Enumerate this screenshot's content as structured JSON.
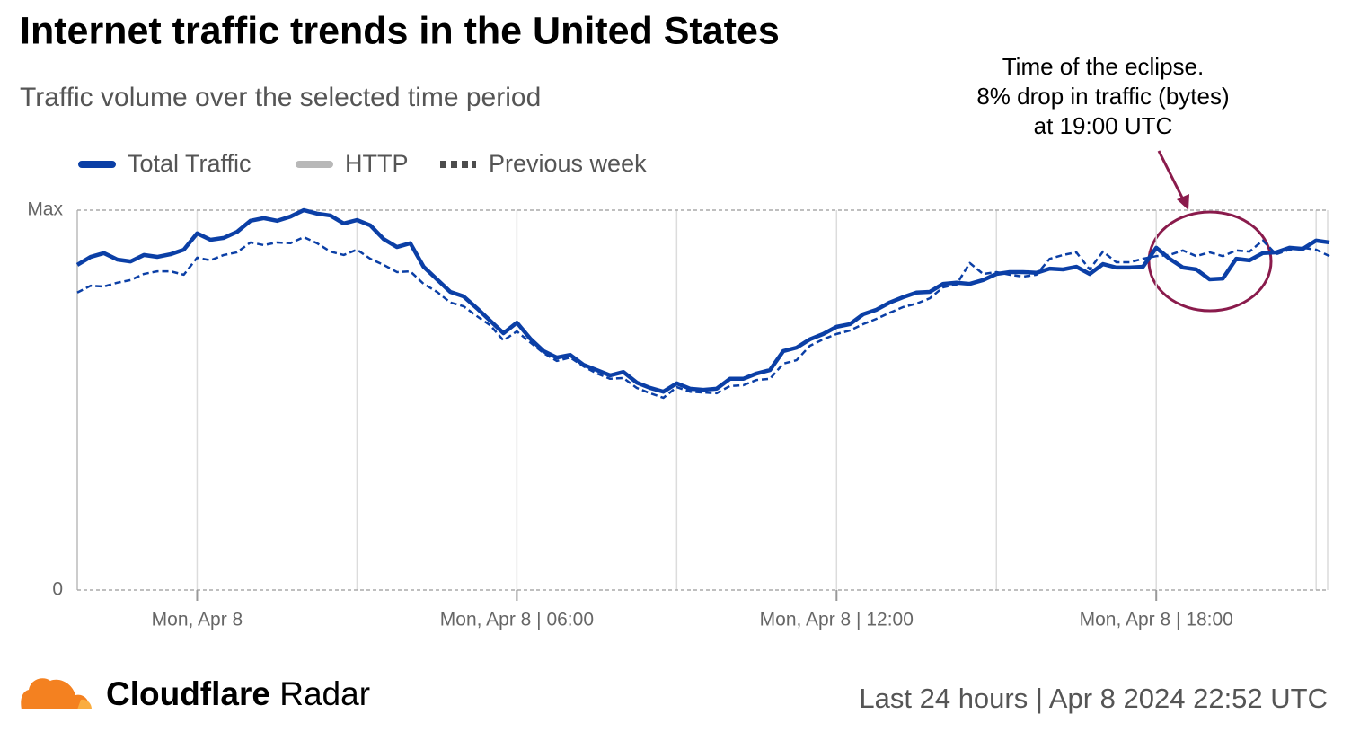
{
  "chart_data": {
    "type": "line",
    "title": "Internet traffic trends in the United States",
    "subtitle": "Traffic volume over the selected time period",
    "annotation": [
      "Time of the eclipse.",
      "8% drop in traffic (bytes)",
      "at 19:00 UTC"
    ],
    "xlim": [
      -2.25,
      21.25
    ],
    "xticks": [
      {
        "value": 0,
        "label": "Mon, Apr 8"
      },
      {
        "value": 6,
        "label": "Mon, Apr 8 | 06:00"
      },
      {
        "value": 12,
        "label": "Mon, Apr 8 | 12:00"
      },
      {
        "value": 18,
        "label": "Mon, Apr 8 | 18:00"
      }
    ],
    "xgrid": [
      0,
      3,
      6,
      9,
      12,
      15,
      18,
      21
    ],
    "ylim": [
      0,
      100
    ],
    "yticks": [
      0,
      {
        "value": 100,
        "label": "Max"
      }
    ],
    "x": [
      -2.25,
      -2,
      -1.75,
      -1.5,
      -1.25,
      -1,
      -0.75,
      -0.5,
      -0.25,
      0,
      0.25,
      0.5,
      0.75,
      1,
      1.25,
      1.5,
      1.75,
      2,
      2.25,
      2.5,
      2.75,
      3,
      3.25,
      3.5,
      3.75,
      4,
      4.25,
      4.5,
      4.75,
      5,
      5.25,
      5.5,
      5.75,
      6,
      6.25,
      6.5,
      6.75,
      7,
      7.25,
      7.5,
      7.75,
      8,
      8.25,
      8.5,
      8.75,
      9,
      9.25,
      9.5,
      9.75,
      10,
      10.25,
      10.5,
      10.75,
      11,
      11.25,
      11.5,
      11.75,
      12,
      12.25,
      12.5,
      12.75,
      13,
      13.25,
      13.5,
      13.75,
      14,
      14.25,
      14.5,
      14.75,
      15,
      15.25,
      15.5,
      15.75,
      16,
      16.25,
      16.5,
      16.75,
      17,
      17.25,
      17.5,
      17.75,
      18,
      18.25,
      18.5,
      18.75,
      19,
      19.25,
      19.5,
      19.75,
      20,
      20.25,
      20.5,
      20.75,
      21,
      21.25
    ],
    "series": [
      {
        "name": "Total Traffic",
        "color": "#0b3fa6",
        "legend_color": "#0b3fa6",
        "values": [
          85.6,
          87.7,
          88.7,
          87.0,
          86.5,
          88.2,
          87.7,
          88.4,
          89.6,
          93.9,
          92.2,
          92.7,
          94.3,
          97.2,
          97.9,
          97.2,
          98.3,
          100,
          99.1,
          98.6,
          96.5,
          97.4,
          96.0,
          92.4,
          90.3,
          91.3,
          85.1,
          81.8,
          78.5,
          77.3,
          74.2,
          70.9,
          67.6,
          70.4,
          66.2,
          62.9,
          61.2,
          61.9,
          59.3,
          57.9,
          56.5,
          57.4,
          54.6,
          53.2,
          52.2,
          54.4,
          53.0,
          52.7,
          53.0,
          55.6,
          55.6,
          57.0,
          57.9,
          62.9,
          63.8,
          66.0,
          67.4,
          69.3,
          70.0,
          72.6,
          73.8,
          75.7,
          77.1,
          78.3,
          78.5,
          80.6,
          80.9,
          80.6,
          81.6,
          83.2,
          83.7,
          83.7,
          83.5,
          84.6,
          84.4,
          85.1,
          83.2,
          85.8,
          84.9,
          84.9,
          85.1,
          90.1,
          87.2,
          84.9,
          84.4,
          81.8,
          82.0,
          87.2,
          86.8,
          88.7,
          88.9,
          90.1,
          89.8,
          92.0,
          91.5
        ]
      },
      {
        "name": "HTTP",
        "color": "#b8b8b8",
        "legend_color": "#b8b8b8"
      },
      {
        "name": "Previous week",
        "color": "#0b3fa6",
        "legend_color": "#4d4d4d",
        "dashed": true,
        "values": [
          78.3,
          80.1,
          79.9,
          80.9,
          81.6,
          83.2,
          83.9,
          83.9,
          83.0,
          87.5,
          86.8,
          88.2,
          88.9,
          91.5,
          90.8,
          91.5,
          91.3,
          92.9,
          91.3,
          89.1,
          88.2,
          89.6,
          87.2,
          85.6,
          83.7,
          83.9,
          80.6,
          78.5,
          75.7,
          74.7,
          72.1,
          69.7,
          65.7,
          68.1,
          65.2,
          62.4,
          60.3,
          61.2,
          58.9,
          57.0,
          55.6,
          55.8,
          53.2,
          51.8,
          50.6,
          53.4,
          52.2,
          52.0,
          51.8,
          53.7,
          53.9,
          55.3,
          55.6,
          59.6,
          60.5,
          64.3,
          66.0,
          67.4,
          68.3,
          70.0,
          71.4,
          73.0,
          74.5,
          75.4,
          76.8,
          79.7,
          80.4,
          86.1,
          83.2,
          83.7,
          83.0,
          82.5,
          83.0,
          87.2,
          88.2,
          88.9,
          84.4,
          89.1,
          86.3,
          86.3,
          87.2,
          87.9,
          88.2,
          89.4,
          87.9,
          88.9,
          87.9,
          89.4,
          89.1,
          92.0,
          88.4,
          89.6,
          90.1,
          89.6,
          87.9
        ]
      }
    ],
    "brand": [
      "Cloudflare",
      "Radar"
    ],
    "footer": "Last 24 hours | Apr 8 2024 22:52 UTC"
  }
}
